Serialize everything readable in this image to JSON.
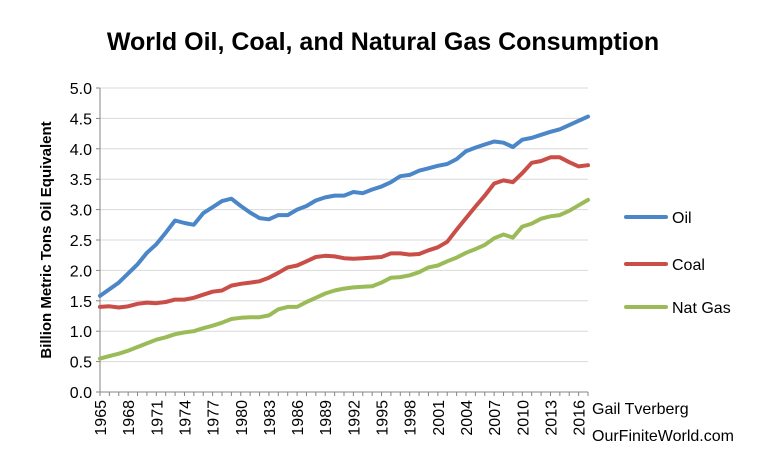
{
  "chart_data": {
    "type": "line",
    "title": "World Oil, Coal, and Natural Gas Consumption",
    "ylabel": "Billion Metric Tons Oil Equivalent",
    "xlabel": "",
    "ylim": [
      0,
      5.0
    ],
    "xlim": [
      1965,
      2017
    ],
    "yticks": [
      "0.0",
      "0.5",
      "1.0",
      "1.5",
      "2.0",
      "2.5",
      "3.0",
      "3.5",
      "4.0",
      "4.5",
      "5.0"
    ],
    "xticks": [
      "1965",
      "1968",
      "1971",
      "1974",
      "1977",
      "1980",
      "1983",
      "1986",
      "1989",
      "1992",
      "1995",
      "1998",
      "2001",
      "2004",
      "2007",
      "2010",
      "2013",
      "2016"
    ],
    "grid": "horizontal",
    "legend_position": "right",
    "x": [
      1965,
      1966,
      1967,
      1968,
      1969,
      1970,
      1971,
      1972,
      1973,
      1974,
      1975,
      1976,
      1977,
      1978,
      1979,
      1980,
      1981,
      1982,
      1983,
      1984,
      1985,
      1986,
      1987,
      1988,
      1989,
      1990,
      1991,
      1992,
      1993,
      1994,
      1995,
      1996,
      1997,
      1998,
      1999,
      2000,
      2001,
      2002,
      2003,
      2004,
      2005,
      2006,
      2007,
      2008,
      2009,
      2010,
      2011,
      2012,
      2013,
      2014,
      2015,
      2016,
      2017
    ],
    "series": [
      {
        "name": "Oil",
        "color": "#4A86C8",
        "values": [
          1.58,
          1.69,
          1.8,
          1.95,
          2.1,
          2.29,
          2.43,
          2.62,
          2.82,
          2.78,
          2.75,
          2.94,
          3.04,
          3.14,
          3.18,
          3.06,
          2.95,
          2.86,
          2.84,
          2.91,
          2.91,
          3.0,
          3.06,
          3.15,
          3.2,
          3.23,
          3.23,
          3.29,
          3.27,
          3.33,
          3.38,
          3.45,
          3.55,
          3.57,
          3.64,
          3.68,
          3.72,
          3.75,
          3.83,
          3.96,
          4.02,
          4.07,
          4.12,
          4.1,
          4.03,
          4.15,
          4.18,
          4.23,
          4.28,
          4.32,
          4.39,
          4.46,
          4.53
        ]
      },
      {
        "name": "Coal",
        "color": "#C84E47",
        "values": [
          1.4,
          1.41,
          1.39,
          1.41,
          1.45,
          1.47,
          1.46,
          1.48,
          1.52,
          1.52,
          1.55,
          1.6,
          1.65,
          1.67,
          1.75,
          1.78,
          1.8,
          1.82,
          1.88,
          1.96,
          2.05,
          2.08,
          2.15,
          2.22,
          2.24,
          2.23,
          2.2,
          2.19,
          2.2,
          2.21,
          2.22,
          2.28,
          2.28,
          2.26,
          2.27,
          2.33,
          2.38,
          2.47,
          2.67,
          2.86,
          3.05,
          3.23,
          3.43,
          3.48,
          3.45,
          3.6,
          3.77,
          3.8,
          3.86,
          3.86,
          3.78,
          3.71,
          3.73
        ]
      },
      {
        "name": "Nat Gas",
        "color": "#9BBB59",
        "values": [
          0.55,
          0.59,
          0.63,
          0.68,
          0.74,
          0.8,
          0.86,
          0.9,
          0.95,
          0.98,
          1.0,
          1.05,
          1.09,
          1.14,
          1.2,
          1.22,
          1.23,
          1.23,
          1.26,
          1.36,
          1.4,
          1.4,
          1.48,
          1.55,
          1.62,
          1.67,
          1.7,
          1.72,
          1.73,
          1.74,
          1.8,
          1.88,
          1.89,
          1.92,
          1.97,
          2.05,
          2.08,
          2.15,
          2.21,
          2.29,
          2.35,
          2.42,
          2.53,
          2.59,
          2.54,
          2.72,
          2.77,
          2.85,
          2.89,
          2.91,
          2.98,
          3.07,
          3.16
        ]
      }
    ],
    "annotations": [
      "Gail Tverberg",
      "OurFiniteWorld.com"
    ]
  }
}
